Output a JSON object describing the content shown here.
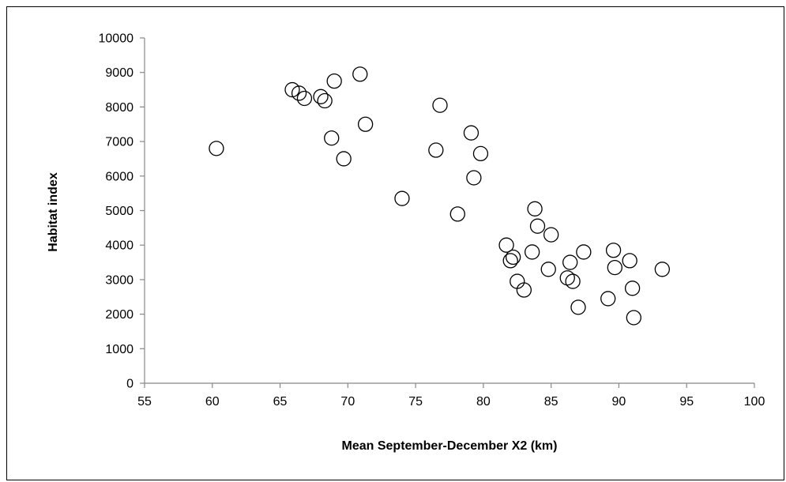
{
  "chart_data": {
    "type": "scatter",
    "title": "",
    "xlabel": "Mean September-December X2 (km)",
    "ylabel": "Habitat index",
    "xlim": [
      55,
      100
    ],
    "ylim": [
      0,
      10000
    ],
    "xticks": [
      55,
      60,
      65,
      70,
      75,
      80,
      85,
      90,
      95,
      100
    ],
    "yticks": [
      0,
      1000,
      2000,
      3000,
      4000,
      5000,
      6000,
      7000,
      8000,
      9000,
      10000
    ],
    "grid": false,
    "legend": "none",
    "marker": "open-circle",
    "marker_color": "#000000",
    "points": [
      {
        "x": 60.3,
        "y": 6800
      },
      {
        "x": 65.9,
        "y": 8500
      },
      {
        "x": 66.4,
        "y": 8400
      },
      {
        "x": 66.8,
        "y": 8250
      },
      {
        "x": 68.0,
        "y": 8300
      },
      {
        "x": 68.3,
        "y": 8180
      },
      {
        "x": 68.8,
        "y": 7100
      },
      {
        "x": 69.0,
        "y": 8750
      },
      {
        "x": 69.7,
        "y": 6500
      },
      {
        "x": 70.9,
        "y": 8950
      },
      {
        "x": 71.3,
        "y": 7500
      },
      {
        "x": 74.0,
        "y": 5350
      },
      {
        "x": 76.5,
        "y": 6750
      },
      {
        "x": 76.8,
        "y": 8050
      },
      {
        "x": 78.1,
        "y": 4900
      },
      {
        "x": 79.1,
        "y": 7250
      },
      {
        "x": 79.3,
        "y": 5950
      },
      {
        "x": 79.8,
        "y": 6650
      },
      {
        "x": 81.7,
        "y": 4000
      },
      {
        "x": 82.0,
        "y": 3550
      },
      {
        "x": 82.2,
        "y": 3650
      },
      {
        "x": 82.5,
        "y": 2950
      },
      {
        "x": 83.0,
        "y": 2700
      },
      {
        "x": 83.6,
        "y": 3800
      },
      {
        "x": 83.8,
        "y": 5050
      },
      {
        "x": 84.0,
        "y": 4550
      },
      {
        "x": 84.8,
        "y": 3300
      },
      {
        "x": 85.0,
        "y": 4300
      },
      {
        "x": 86.2,
        "y": 3050
      },
      {
        "x": 86.4,
        "y": 3500
      },
      {
        "x": 86.6,
        "y": 2950
      },
      {
        "x": 87.0,
        "y": 2200
      },
      {
        "x": 87.4,
        "y": 3800
      },
      {
        "x": 89.2,
        "y": 2450
      },
      {
        "x": 89.6,
        "y": 3850
      },
      {
        "x": 89.7,
        "y": 3350
      },
      {
        "x": 90.8,
        "y": 3550
      },
      {
        "x": 91.0,
        "y": 2750
      },
      {
        "x": 91.1,
        "y": 1900
      },
      {
        "x": 93.2,
        "y": 3300
      }
    ]
  }
}
